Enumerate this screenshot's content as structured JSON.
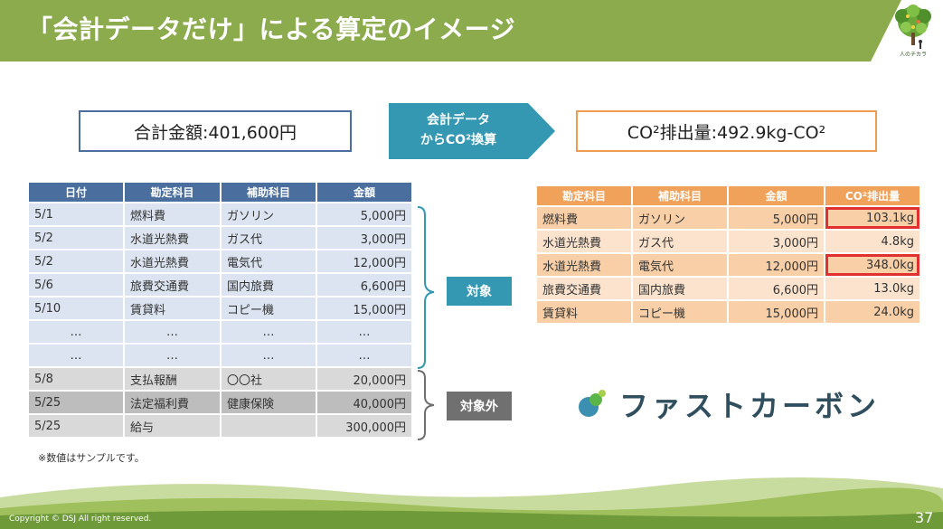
{
  "title": "「会計データだけ」による算定のイメージ",
  "logo_text": "人のチカラ",
  "total_box": "合計金額:401,600円",
  "arrow_lines": [
    "会計データ",
    "からCO²換算"
  ],
  "co2_box": "CO²排出量:492.9kg-CO²",
  "left_table": {
    "headers": [
      "日付",
      "勘定科目",
      "補助科目",
      "金額"
    ],
    "rows": [
      [
        "5/1",
        "燃料費",
        "ガソリン",
        "5,000円"
      ],
      [
        "5/2",
        "水道光熱費",
        "ガス代",
        "3,000円"
      ],
      [
        "5/2",
        "水道光熱費",
        "電気代",
        "12,000円"
      ],
      [
        "5/6",
        "旅費交通費",
        "国内旅費",
        "6,600円"
      ],
      [
        "5/10",
        "賃貸料",
        "コピー機",
        "15,000円"
      ],
      [
        "…",
        "…",
        "…",
        "…"
      ],
      [
        "…",
        "…",
        "…",
        "…"
      ],
      [
        "5/8",
        "支払報酬",
        "〇〇社",
        "20,000円"
      ],
      [
        "5/25",
        "法定福利費",
        "健康保険",
        "40,000円"
      ],
      [
        "5/25",
        "給与",
        "",
        "300,000円"
      ]
    ]
  },
  "right_table": {
    "headers": [
      "勘定科目",
      "補助科目",
      "金額",
      "CO²排出量"
    ],
    "rows": [
      [
        "燃料費",
        "ガソリン",
        "5,000円",
        "103.1kg"
      ],
      [
        "水道光熱費",
        "ガス代",
        "3,000円",
        "4.8kg"
      ],
      [
        "水道光熱費",
        "電気代",
        "12,000円",
        "348.0kg"
      ],
      [
        "旅費交通費",
        "国内旅費",
        "6,600円",
        "13.0kg"
      ],
      [
        "賃貸料",
        "コピー機",
        "15,000円",
        "24.0kg"
      ]
    ]
  },
  "tag_in": "対象",
  "tag_out": "対象外",
  "brand_name": "ファストカーボン",
  "note": "※数値はサンプルです。",
  "copyright": "Copyright © DSJ All right reserved.",
  "page_number": "37",
  "colors": {
    "header_green": "#8bab4d",
    "table_blue": "#4a6f9f",
    "table_orange": "#f0a15a",
    "arrow_teal": "#3598b2",
    "highlight_red": "#e03030"
  }
}
